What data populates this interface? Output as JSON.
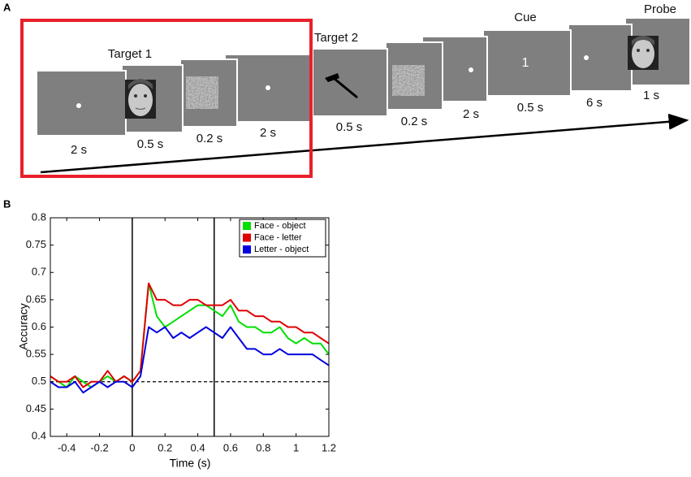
{
  "panels": [
    "A",
    "B"
  ],
  "trial": {
    "target_1": "Target 1",
    "target_2": "Target 2",
    "cue": "Cue",
    "cue_digit": "1",
    "probe": "Probe",
    "durations": [
      "2 s",
      "0.5 s",
      "0.2 s",
      "2 s",
      "0.5 s",
      "0.2 s",
      "2 s",
      "0.5 s",
      "6 s",
      "1 s"
    ]
  },
  "chart_data": {
    "type": "line",
    "xlabel": "Time (s)",
    "ylabel": "Accuracy",
    "xlim": [
      -0.5,
      1.2
    ],
    "ylim": [
      0.4,
      0.8
    ],
    "xticks": [
      -0.4,
      -0.2,
      0,
      0.2,
      0.4,
      0.6,
      0.8,
      1,
      1.2
    ],
    "yticks": [
      0.4,
      0.45,
      0.5,
      0.55,
      0.6,
      0.65,
      0.7,
      0.75,
      0.8
    ],
    "vlines": [
      0,
      0.5
    ],
    "hline": 0.5,
    "legend": "upper right",
    "x": [
      -0.5,
      -0.45,
      -0.4,
      -0.35,
      -0.3,
      -0.25,
      -0.2,
      -0.15,
      -0.1,
      -0.05,
      0,
      0.05,
      0.1,
      0.15,
      0.2,
      0.25,
      0.3,
      0.35,
      0.4,
      0.45,
      0.5,
      0.55,
      0.6,
      0.65,
      0.7,
      0.75,
      0.8,
      0.85,
      0.9,
      0.95,
      1.0,
      1.05,
      1.1,
      1.15,
      1.2
    ],
    "series": [
      {
        "name": "Face - object",
        "color": "#00e000",
        "values": [
          0.51,
          0.5,
          0.49,
          0.51,
          0.5,
          0.49,
          0.5,
          0.51,
          0.5,
          0.51,
          0.5,
          0.52,
          0.68,
          0.62,
          0.6,
          0.61,
          0.62,
          0.63,
          0.64,
          0.64,
          0.63,
          0.62,
          0.64,
          0.61,
          0.6,
          0.6,
          0.59,
          0.59,
          0.6,
          0.58,
          0.57,
          0.58,
          0.57,
          0.57,
          0.55
        ]
      },
      {
        "name": "Face - letter",
        "color": "#e00000",
        "values": [
          0.51,
          0.5,
          0.5,
          0.51,
          0.49,
          0.5,
          0.5,
          0.52,
          0.5,
          0.51,
          0.5,
          0.52,
          0.68,
          0.65,
          0.65,
          0.64,
          0.64,
          0.65,
          0.65,
          0.64,
          0.64,
          0.64,
          0.65,
          0.63,
          0.63,
          0.62,
          0.62,
          0.61,
          0.61,
          0.6,
          0.6,
          0.59,
          0.59,
          0.58,
          0.57
        ]
      },
      {
        "name": "Letter - object",
        "color": "#0000e0",
        "values": [
          0.5,
          0.49,
          0.49,
          0.5,
          0.48,
          0.49,
          0.5,
          0.49,
          0.5,
          0.5,
          0.49,
          0.51,
          0.6,
          0.59,
          0.6,
          0.58,
          0.59,
          0.58,
          0.59,
          0.6,
          0.59,
          0.58,
          0.6,
          0.58,
          0.56,
          0.56,
          0.55,
          0.55,
          0.56,
          0.55,
          0.55,
          0.55,
          0.55,
          0.54,
          0.53
        ]
      }
    ]
  }
}
